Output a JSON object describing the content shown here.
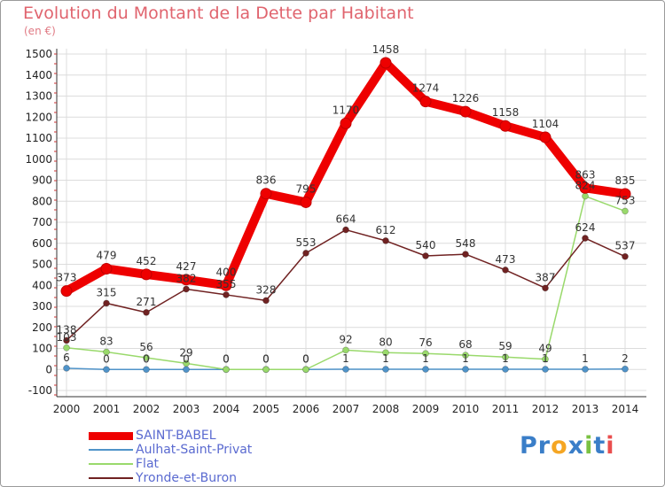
{
  "title": "Evolution du Montant de la Dette par Habitant",
  "unit": "(en €)",
  "logo": {
    "text": "Proxiti",
    "letters": [
      "P",
      "r",
      "o",
      "x",
      "i",
      "t",
      "i"
    ],
    "colors": [
      "#3a7ec8",
      "#3a7ec8",
      "#f5a623",
      "#3a7ec8",
      "#7ac142",
      "#3a7ec8",
      "#e94e4e"
    ]
  },
  "chart_data": {
    "type": "line",
    "title": "Evolution du Montant de la Dette par Habitant",
    "ylabel": "(en €)",
    "xlabel": "",
    "x": [
      "2000",
      "2001",
      "2002",
      "2003",
      "2004",
      "2005",
      "2006",
      "2007",
      "2008",
      "2009",
      "2010",
      "2011",
      "2012",
      "2013",
      "2014"
    ],
    "yticks": [
      "-100",
      "0",
      "100",
      "200",
      "300",
      "400",
      "500",
      "600",
      "700",
      "800",
      "900",
      "1000",
      "1100",
      "1200",
      "1300",
      "1400",
      "1500"
    ],
    "ylim": [
      -100,
      1500
    ],
    "grid": true,
    "legend_position": "bottom-left",
    "series": [
      {
        "name": "SAINT-BABEL",
        "color": "#ee0000",
        "values": [
          373,
          479,
          452,
          427,
          400,
          836,
          795,
          1170,
          1458,
          1274,
          1226,
          1158,
          1104,
          863,
          835
        ],
        "labels": [
          "373",
          "479",
          "452",
          "427",
          "400",
          "836",
          "795",
          "1170",
          "1458",
          "1274",
          "1226",
          "1158",
          "1104",
          "863",
          "835"
        ]
      },
      {
        "name": "Aulhat-Saint-Privat",
        "color": "#4f93c9",
        "values": [
          6,
          0,
          0,
          0,
          0,
          0,
          0,
          1,
          1,
          1,
          1,
          1,
          1,
          1,
          2
        ],
        "labels": [
          "6",
          "0",
          "0",
          "0",
          "0",
          "0",
          "0",
          "1",
          "1",
          "1",
          "1",
          "1",
          "1",
          "1",
          "2"
        ]
      },
      {
        "name": "Flat",
        "color": "#99d96b",
        "values": [
          103,
          83,
          56,
          29,
          0,
          0,
          0,
          92,
          80,
          76,
          68,
          59,
          49,
          824,
          753
        ],
        "labels": [
          "103",
          "83",
          "56",
          "29",
          "0",
          "0",
          "0",
          "92",
          "80",
          "76",
          "68",
          "59",
          "49",
          "824",
          "753"
        ]
      },
      {
        "name": "Yronde-et-Buron",
        "color": "#702222",
        "values": [
          138,
          315,
          271,
          382,
          355,
          328,
          553,
          664,
          612,
          540,
          548,
          473,
          387,
          624,
          537
        ],
        "labels": [
          "138",
          "315",
          "271",
          "382",
          "355",
          "328",
          "553",
          "664",
          "612",
          "540",
          "548",
          "473",
          "387",
          "624",
          "537"
        ]
      }
    ]
  }
}
